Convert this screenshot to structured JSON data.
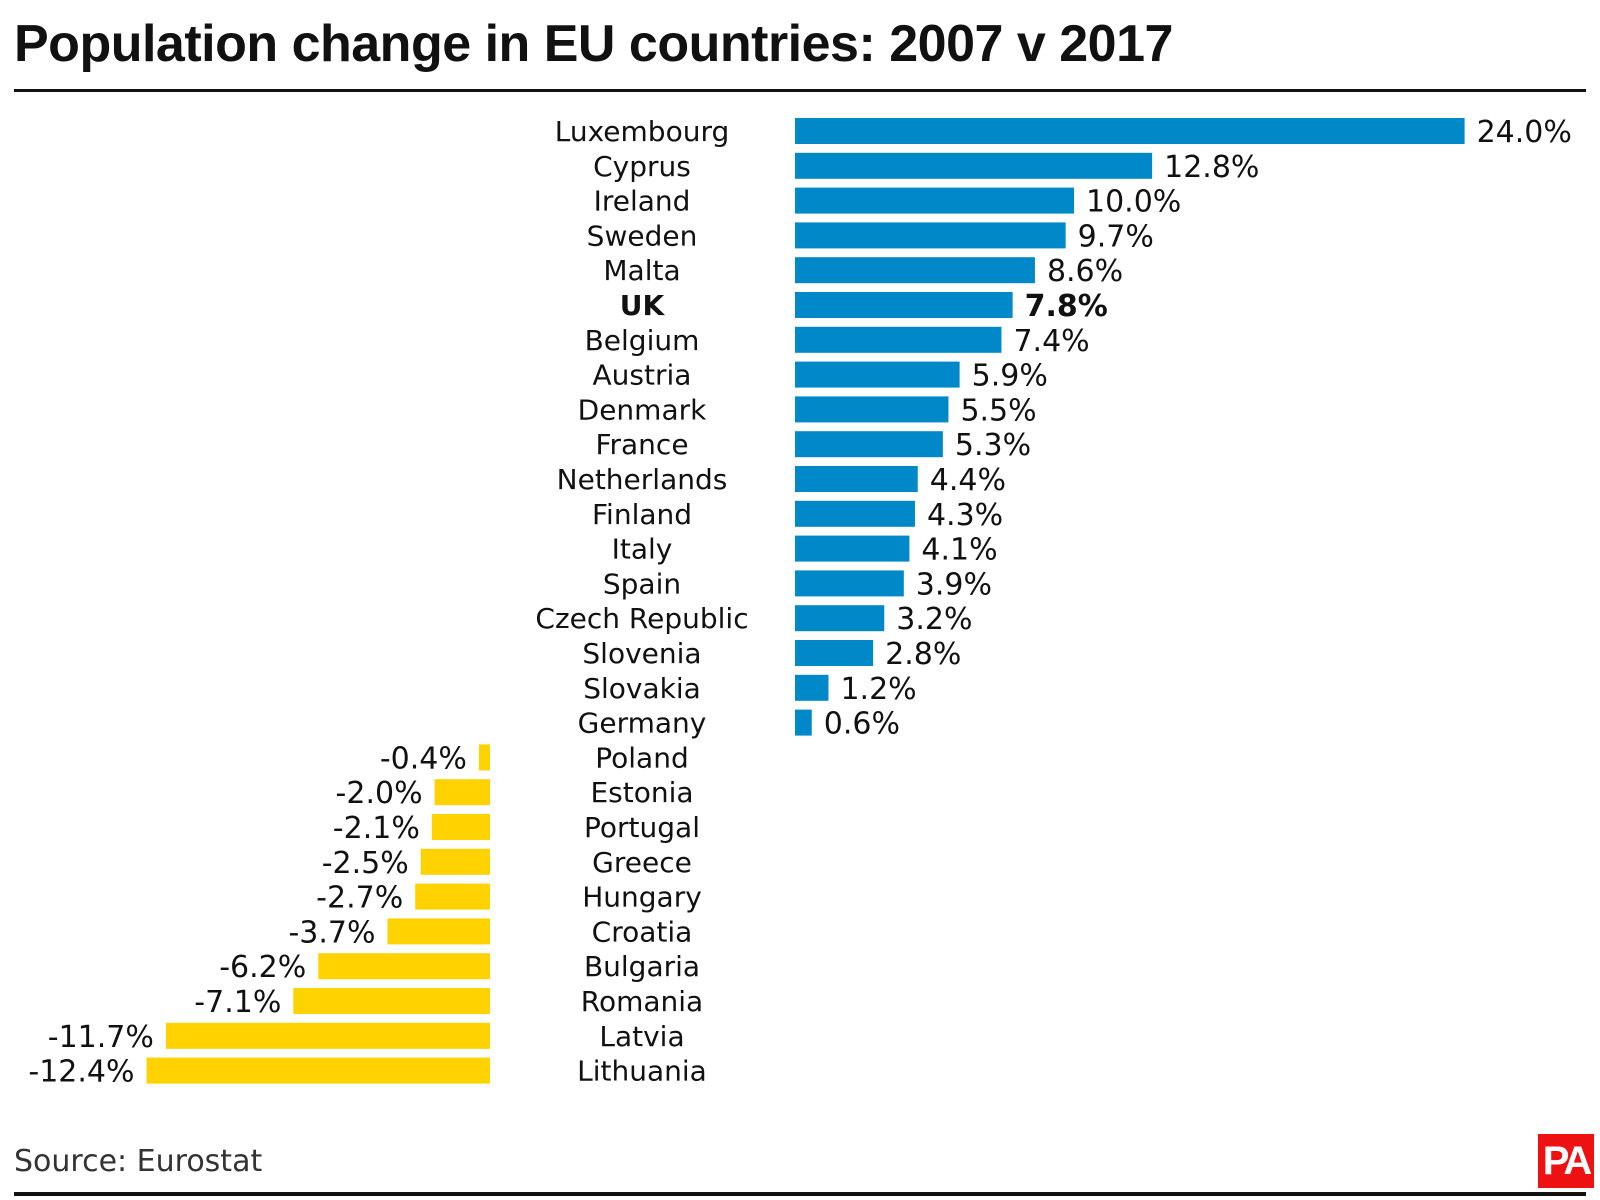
{
  "chart_data": {
    "type": "bar",
    "orientation": "horizontal",
    "title": "Population change in EU countries: 2007 v 2017",
    "source": "Source: Eurostat",
    "logo_text": "PA",
    "colors": {
      "positive": "#0088c8",
      "negative": "#ffd200",
      "text": "#111111"
    },
    "unit": "%",
    "highlight": "UK",
    "categories": [
      "Luxembourg",
      "Cyprus",
      "Ireland",
      "Sweden",
      "Malta",
      "UK",
      "Belgium",
      "Austria",
      "Denmark",
      "France",
      "Netherlands",
      "Finland",
      "Italy",
      "Spain",
      "Czech Republic",
      "Slovenia",
      "Slovakia",
      "Germany",
      "Poland",
      "Estonia",
      "Portugal",
      "Greece",
      "Hungary",
      "Croatia",
      "Bulgaria",
      "Romania",
      "Latvia",
      "Lithuania"
    ],
    "values": [
      24.0,
      12.8,
      10.0,
      9.7,
      8.6,
      7.8,
      7.4,
      5.9,
      5.5,
      5.3,
      4.4,
      4.3,
      4.1,
      3.9,
      3.2,
      2.8,
      1.2,
      0.6,
      -0.4,
      -2.0,
      -2.1,
      -2.5,
      -2.7,
      -3.7,
      -6.2,
      -7.1,
      -11.7,
      -12.4
    ],
    "labels": [
      "24.0%",
      "12.8%",
      "10.0%",
      "9.7%",
      "8.6%",
      "7.8%",
      "7.4%",
      "5.9%",
      "5.5%",
      "5.3%",
      "4.4%",
      "4.3%",
      "4.1%",
      "3.9%",
      "3.2%",
      "2.8%",
      "1.2%",
      "0.6%",
      "-0.4%",
      "-2.0%",
      "-2.1%",
      "-2.5%",
      "-2.7%",
      "-3.7%",
      "-6.2%",
      "-7.1%",
      "-11.7%",
      "-12.4%"
    ]
  }
}
